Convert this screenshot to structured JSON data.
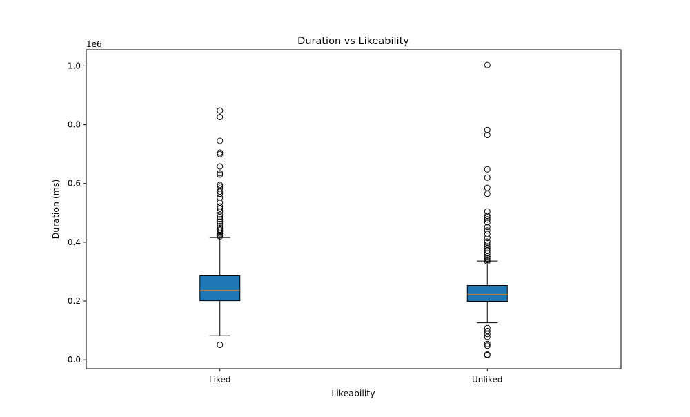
{
  "chart_data": {
    "type": "box",
    "title": "Duration vs Likeability",
    "xlabel": "Likeability",
    "ylabel": "Duration (ms)",
    "y_offset_label": "1e6",
    "ylim": [
      -0.03,
      1.055
    ],
    "y_ticks": [
      0.0,
      0.2,
      0.4,
      0.6,
      0.8,
      1.0
    ],
    "y_tick_labels": [
      "0.0",
      "0.2",
      "0.4",
      "0.6",
      "0.8",
      "1.0"
    ],
    "grid": false,
    "categories": [
      "Liked",
      "Unliked"
    ],
    "box_fill_color": "#1f77b4",
    "median_color": "#ff7f0e",
    "boxes": [
      {
        "category": "Liked",
        "whisker_low": 0.082,
        "q1": 0.201,
        "median": 0.236,
        "q3": 0.286,
        "whisker_high": 0.416,
        "outliers": [
          0.051,
          0.42,
          0.425,
          0.43,
          0.436,
          0.442,
          0.448,
          0.455,
          0.462,
          0.47,
          0.478,
          0.486,
          0.494,
          0.505,
          0.515,
          0.522,
          0.535,
          0.552,
          0.565,
          0.572,
          0.583,
          0.59,
          0.595,
          0.63,
          0.635,
          0.658,
          0.7,
          0.705,
          0.745,
          0.826,
          0.848
        ]
      },
      {
        "category": "Unliked",
        "whisker_low": 0.126,
        "q1": 0.199,
        "median": 0.222,
        "q3": 0.253,
        "whisker_high": 0.336,
        "outliers": [
          0.016,
          0.018,
          0.048,
          0.054,
          0.078,
          0.088,
          0.098,
          0.108,
          0.335,
          0.34,
          0.345,
          0.352,
          0.362,
          0.372,
          0.38,
          0.386,
          0.392,
          0.402,
          0.415,
          0.428,
          0.44,
          0.452,
          0.468,
          0.478,
          0.484,
          0.49,
          0.505,
          0.565,
          0.585,
          0.62,
          0.648,
          0.765,
          0.782,
          1.003
        ]
      }
    ]
  }
}
